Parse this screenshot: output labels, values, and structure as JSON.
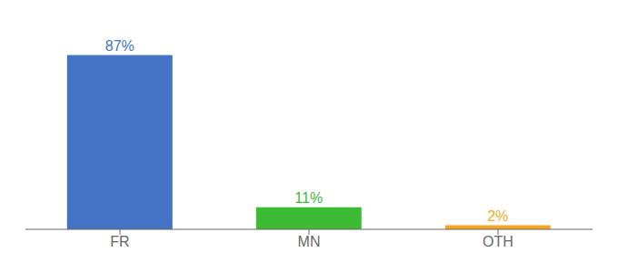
{
  "chart_data": {
    "type": "bar",
    "categories": [
      "FR",
      "MN",
      "OTH"
    ],
    "values": [
      87,
      11,
      2
    ],
    "value_labels": [
      "87%",
      "11%",
      "2%"
    ],
    "colors": [
      "#4472c4",
      "#3dbb35",
      "#f5a623"
    ],
    "ylim": [
      0,
      100
    ],
    "data_labels": true,
    "tick_labels": "x",
    "grid": false
  }
}
